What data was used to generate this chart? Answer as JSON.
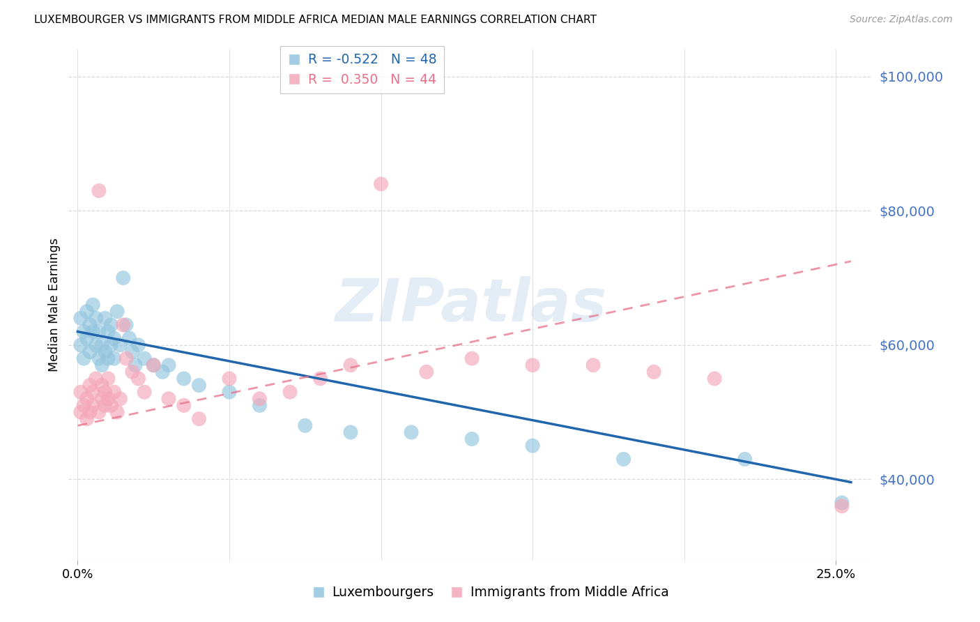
{
  "title": "LUXEMBOURGER VS IMMIGRANTS FROM MIDDLE AFRICA MEDIAN MALE EARNINGS CORRELATION CHART",
  "source": "Source: ZipAtlas.com",
  "ylabel": "Median Male Earnings",
  "y_ticks": [
    40000,
    60000,
    80000,
    100000
  ],
  "y_tick_labels": [
    "$40,000",
    "$60,000",
    "$80,000",
    "$100,000"
  ],
  "y_min": 28000,
  "y_max": 104000,
  "x_min": -0.003,
  "x_max": 0.262,
  "watermark": "ZIPatlas",
  "legend_blue_r": "R = -0.522",
  "legend_blue_n": "N = 48",
  "legend_pink_r": "R =  0.350",
  "legend_pink_n": "N = 44",
  "blue_color": "#92c5de",
  "pink_color": "#f4a7b9",
  "blue_line_color": "#2166ac",
  "pink_line_color": "#e8708a",
  "axis_label_color": "#4472c4",
  "grid_color": "#d9d9d9",
  "blue_scatter_x": [
    0.001,
    0.001,
    0.002,
    0.002,
    0.003,
    0.003,
    0.004,
    0.004,
    0.005,
    0.005,
    0.006,
    0.006,
    0.007,
    0.007,
    0.008,
    0.008,
    0.009,
    0.009,
    0.01,
    0.01,
    0.011,
    0.011,
    0.012,
    0.012,
    0.013,
    0.014,
    0.015,
    0.016,
    0.017,
    0.018,
    0.019,
    0.02,
    0.022,
    0.025,
    0.028,
    0.03,
    0.035,
    0.04,
    0.05,
    0.06,
    0.075,
    0.09,
    0.11,
    0.13,
    0.15,
    0.18,
    0.22,
    0.252
  ],
  "blue_scatter_y": [
    60000,
    64000,
    62000,
    58000,
    61000,
    65000,
    63000,
    59000,
    62000,
    66000,
    60000,
    64000,
    58000,
    62000,
    60000,
    57000,
    64000,
    59000,
    62000,
    58000,
    60000,
    63000,
    61000,
    58000,
    65000,
    60000,
    70000,
    63000,
    61000,
    59000,
    57000,
    60000,
    58000,
    57000,
    56000,
    57000,
    55000,
    54000,
    53000,
    51000,
    48000,
    47000,
    47000,
    46000,
    45000,
    43000,
    43000,
    36500
  ],
  "pink_scatter_x": [
    0.001,
    0.001,
    0.002,
    0.003,
    0.003,
    0.004,
    0.004,
    0.005,
    0.005,
    0.006,
    0.007,
    0.007,
    0.008,
    0.008,
    0.009,
    0.009,
    0.01,
    0.01,
    0.011,
    0.012,
    0.013,
    0.014,
    0.015,
    0.016,
    0.018,
    0.02,
    0.022,
    0.025,
    0.03,
    0.035,
    0.04,
    0.05,
    0.06,
    0.07,
    0.08,
    0.09,
    0.1,
    0.115,
    0.13,
    0.15,
    0.17,
    0.19,
    0.21,
    0.252
  ],
  "pink_scatter_y": [
    50000,
    53000,
    51000,
    49000,
    52000,
    54000,
    50000,
    53000,
    51000,
    55000,
    50000,
    83000,
    52000,
    54000,
    51000,
    53000,
    52000,
    55000,
    51000,
    53000,
    50000,
    52000,
    63000,
    58000,
    56000,
    55000,
    53000,
    57000,
    52000,
    51000,
    49000,
    55000,
    52000,
    53000,
    55000,
    57000,
    84000,
    56000,
    58000,
    57000,
    57000,
    56000,
    55000,
    36000
  ],
  "x_ticks": [
    0.0,
    0.25
  ],
  "x_tick_labels": [
    "0.0%",
    "25.0%"
  ]
}
